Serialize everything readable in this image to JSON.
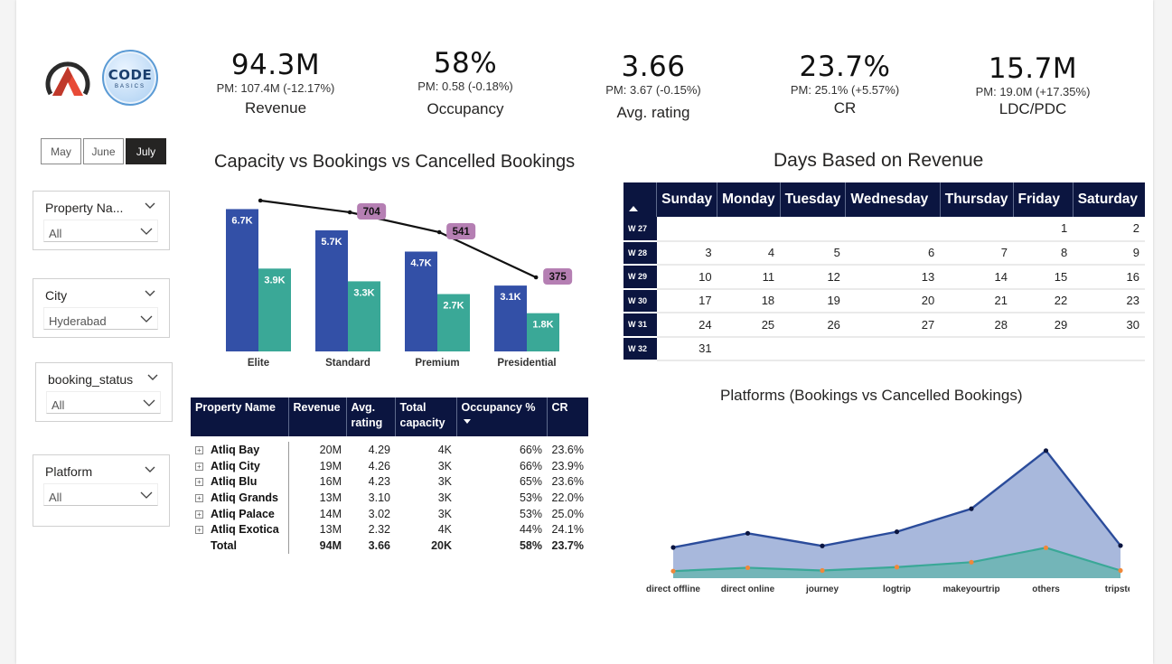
{
  "months": [
    {
      "label": "May",
      "active": false
    },
    {
      "label": "June",
      "active": false
    },
    {
      "label": "July",
      "active": true
    }
  ],
  "logos": {
    "codebasics_big": "CODE",
    "codebasics_small": "BASICS"
  },
  "slicers": {
    "property": {
      "title": "Property Na...",
      "value": "All"
    },
    "city": {
      "title": "City",
      "value": "Hyderabad"
    },
    "booking_status": {
      "title": "booking_status",
      "value": "All"
    },
    "platform": {
      "title": "Platform",
      "value": "All"
    }
  },
  "kpis": {
    "revenue": {
      "value": "94.3M",
      "pm": "PM: 107.4M (-12.17%)",
      "label": "Revenue"
    },
    "occupancy": {
      "value": "58%",
      "pm": "PM: 0.58 (-0.18%)",
      "label": "Occupancy"
    },
    "rating": {
      "value": "3.66",
      "pm": "PM: 3.67 (-0.15%)",
      "label": "Avg. rating"
    },
    "cr": {
      "value": "23.7%",
      "pm": "PM: 25.1% (+5.57%)",
      "label": "CR"
    },
    "ldc": {
      "value": "15.7M",
      "pm": "PM: 19.0M (+17.35%)",
      "label": "LDC/PDC"
    }
  },
  "titles": {
    "bar": "Capacity vs Bookings vs Cancelled Bookings",
    "calendar": "Days Based on Revenue",
    "platforms": "Platforms (Bookings vs Cancelled Bookings)"
  },
  "colors": {
    "navy": "#0b1540",
    "capacity": "#3350a7",
    "bookings": "#3aa897",
    "cancel_line": "#111111",
    "cancel_label": "#b57fb3",
    "area_top": "#9fb0d8",
    "area_top_line": "#2b4c9b",
    "area_bottom": "#6ab4b1",
    "area_bottom_line": "#3aa897",
    "dot_orange": "#f0883a"
  },
  "chart_data": [
    {
      "type": "bar",
      "categories": [
        "Elite",
        "Standard",
        "Premium",
        "Presidential"
      ],
      "series": [
        {
          "name": "Capacity",
          "values": [
            6.7,
            5.7,
            4.7,
            3.1
          ],
          "labels": [
            "6.7K",
            "5.7K",
            "4.7K",
            "3.1K"
          ]
        },
        {
          "name": "Bookings",
          "values": [
            3.9,
            3.3,
            2.7,
            1.8
          ],
          "labels": [
            "3.9K",
            "3.3K",
            "2.7K",
            "1.8K"
          ]
        },
        {
          "name": "Cancelled Bookings",
          "values": [
            null,
            704,
            541,
            375
          ],
          "labels": [
            "",
            "704",
            "541",
            "375"
          ]
        }
      ],
      "title": "Capacity vs Bookings vs Cancelled Bookings",
      "ylim": [
        0,
        7.4
      ]
    },
    {
      "type": "area",
      "categories": [
        "direct offline",
        "direct online",
        "journey",
        "logtrip",
        "makeyourtrip",
        "others",
        "tripster"
      ],
      "series": [
        {
          "name": "Bookings",
          "values": [
            1000,
            1460,
            1050,
            1510,
            2260,
            4150,
            1060
          ]
        },
        {
          "name": "Cancelled Bookings",
          "values": [
            230,
            340,
            250,
            360,
            520,
            990,
            250
          ]
        }
      ],
      "title": "Platforms (Bookings vs Cancelled Bookings)"
    }
  ],
  "property_table": {
    "headers": [
      "Property Name",
      "Revenue",
      "Avg. rating",
      "Total capacity",
      "Occupancy %",
      "CR"
    ],
    "rows": [
      [
        "Atliq Bay",
        "20M",
        "4.29",
        "4K",
        "66%",
        "23.6%"
      ],
      [
        "Atliq City",
        "19M",
        "4.26",
        "3K",
        "66%",
        "23.9%"
      ],
      [
        "Atliq Blu",
        "16M",
        "4.23",
        "3K",
        "65%",
        "23.6%"
      ],
      [
        "Atliq Grands",
        "13M",
        "3.10",
        "3K",
        "53%",
        "22.0%"
      ],
      [
        "Atliq Palace",
        "14M",
        "3.02",
        "3K",
        "53%",
        "25.0%"
      ],
      [
        "Atliq Exotica",
        "13M",
        "2.32",
        "4K",
        "44%",
        "24.1%"
      ]
    ],
    "total": [
      "Total",
      "94M",
      "3.66",
      "20K",
      "58%",
      "23.7%"
    ]
  },
  "calendar": {
    "days": [
      "Sunday",
      "Monday",
      "Tuesday",
      "Wednesday",
      "Thursday",
      "Friday",
      "Saturday"
    ],
    "weeks": [
      {
        "week": "W 27",
        "cells": [
          "",
          "",
          "",
          "",
          "",
          "1",
          "2"
        ]
      },
      {
        "week": "W 28",
        "cells": [
          "3",
          "4",
          "5",
          "6",
          "7",
          "8",
          "9"
        ]
      },
      {
        "week": "W 29",
        "cells": [
          "10",
          "11",
          "12",
          "13",
          "14",
          "15",
          "16"
        ]
      },
      {
        "week": "W 30",
        "cells": [
          "17",
          "18",
          "19",
          "20",
          "21",
          "22",
          "23"
        ]
      },
      {
        "week": "W 31",
        "cells": [
          "24",
          "25",
          "26",
          "27",
          "28",
          "29",
          "30"
        ]
      },
      {
        "week": "W 32",
        "cells": [
          "31",
          "",
          "",
          "",
          "",
          "",
          ""
        ]
      }
    ]
  }
}
